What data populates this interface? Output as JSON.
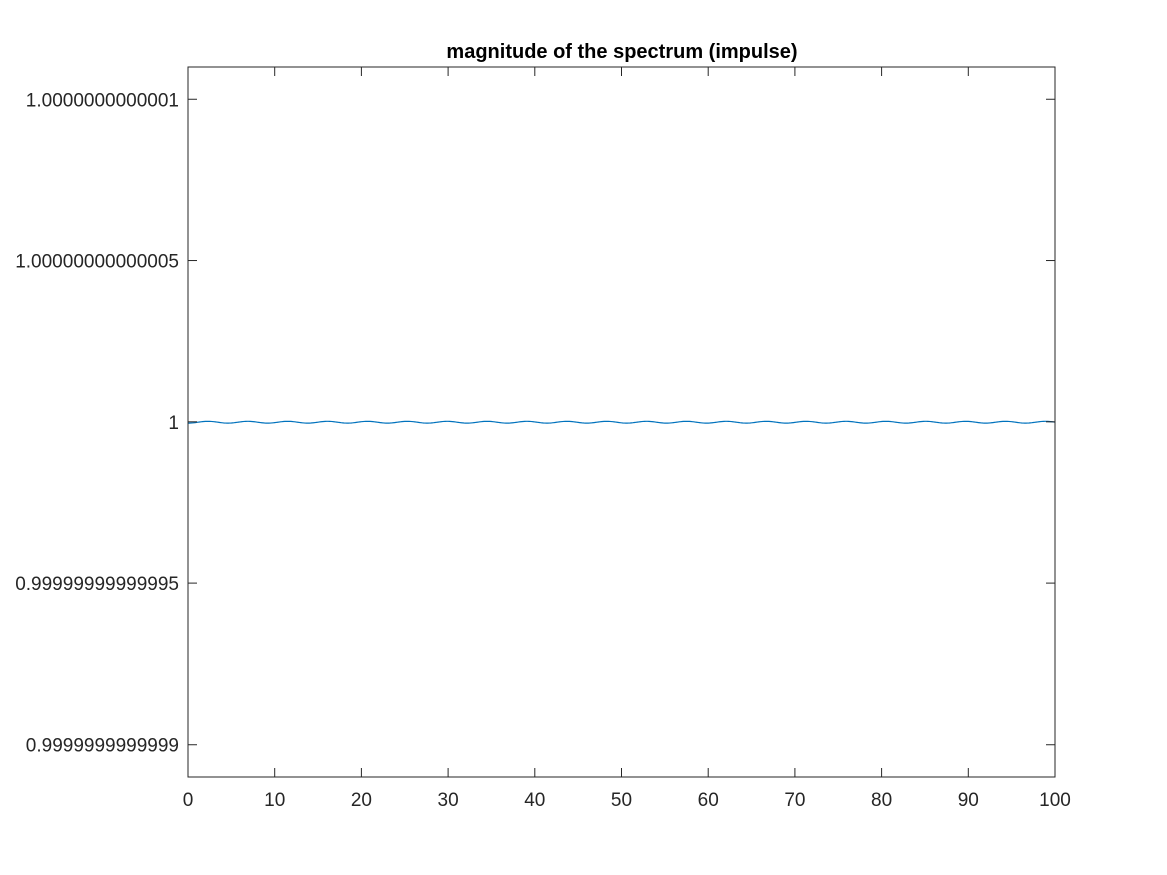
{
  "chart_data": {
    "type": "line",
    "title": "magnitude of the spectrum (impulse)",
    "xlabel": "",
    "ylabel": "",
    "xlim": [
      0,
      100
    ],
    "ylim": [
      0.99999999999989,
      1.00000000000011
    ],
    "x_ticks": [
      {
        "value": 0,
        "label": "0"
      },
      {
        "value": 10,
        "label": "10"
      },
      {
        "value": 20,
        "label": "20"
      },
      {
        "value": 30,
        "label": "30"
      },
      {
        "value": 40,
        "label": "40"
      },
      {
        "value": 50,
        "label": "50"
      },
      {
        "value": 60,
        "label": "60"
      },
      {
        "value": 70,
        "label": "70"
      },
      {
        "value": 80,
        "label": "80"
      },
      {
        "value": 90,
        "label": "90"
      },
      {
        "value": 100,
        "label": "100"
      }
    ],
    "y_ticks": [
      {
        "value": 0.9999999999999,
        "label": "0.9999999999999"
      },
      {
        "value": 0.99999999999995,
        "label": "0.99999999999995"
      },
      {
        "value": 1,
        "label": "1"
      },
      {
        "value": 1.00000000000005,
        "label": "1.00000000000005"
      },
      {
        "value": 1.0000000000001,
        "label": "1.0000000000001"
      }
    ],
    "grid": false,
    "box": true,
    "series": [
      {
        "color": "#0072bd",
        "x_start": 0,
        "x_end": 100,
        "y_value": 1,
        "ripple_period": 4.6
      }
    ]
  }
}
